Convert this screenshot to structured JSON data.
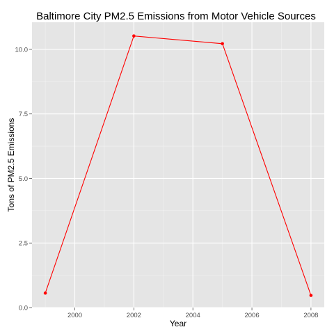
{
  "chart_data": {
    "type": "line",
    "title": "Baltimore City PM2.5 Emissions from Motor Vehicle Sources",
    "xlabel": "Year",
    "ylabel": "Tons of PM2.5 Emissions",
    "x": [
      1999,
      2002,
      2005,
      2008
    ],
    "series": [
      {
        "values": [
          0.56,
          10.52,
          10.22,
          0.47
        ],
        "color": "#ff0000"
      }
    ],
    "xlim": [
      1998.55,
      2008.45
    ],
    "ylim": [
      0,
      11.05
    ],
    "x_ticks": [
      2000,
      2002,
      2004,
      2006,
      2008
    ],
    "x_tick_labels": [
      "2000",
      "2002",
      "2004",
      "2006",
      "2008"
    ],
    "y_ticks": [
      0,
      2.5,
      5,
      7.5,
      10
    ],
    "y_tick_labels": [
      "0.0",
      "2.5",
      "5.0",
      "7.5",
      "10.0"
    ],
    "grid": true,
    "panel_color": "#e5e5e5",
    "grid_color": "#ffffff",
    "tick_label_color": "#4d4d4d"
  }
}
